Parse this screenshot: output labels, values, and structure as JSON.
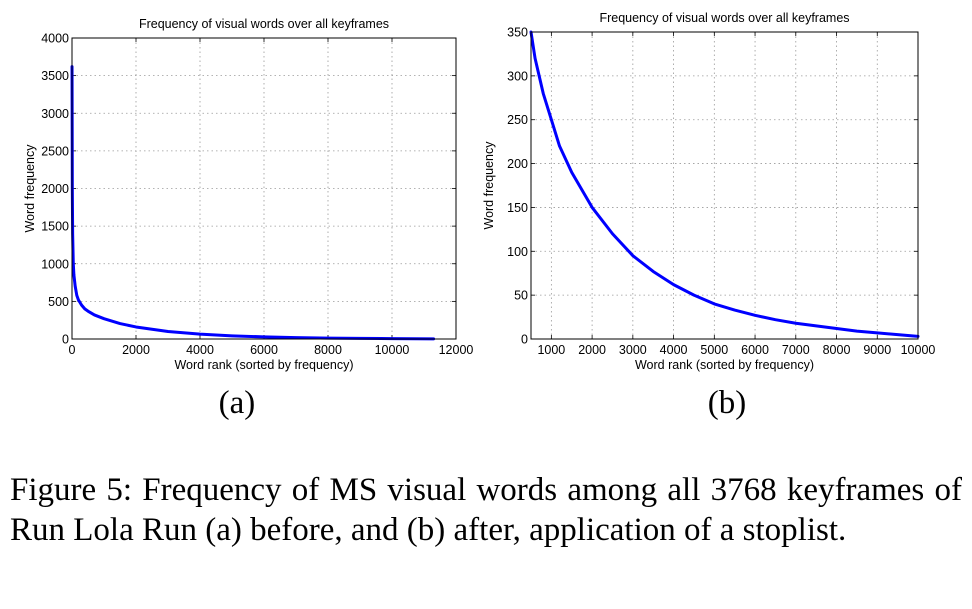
{
  "chart_data": [
    {
      "type": "line",
      "title": "Frequency of visual words over all keyframes",
      "xlabel": "Word rank (sorted by frequency)",
      "ylabel": "Word frequency",
      "xlim": [
        0,
        12000
      ],
      "ylim": [
        0,
        4000
      ],
      "xticks": [
        "0",
        "2000",
        "4000",
        "6000",
        "8000",
        "10000",
        "12000"
      ],
      "yticks": [
        "0",
        "500",
        "1000",
        "1500",
        "2000",
        "2500",
        "3000",
        "3500",
        "4000"
      ],
      "grid": true,
      "series": [
        {
          "color": "#0000ff",
          "x": [
            1,
            10,
            20,
            40,
            60,
            100,
            150,
            200,
            300,
            400,
            500,
            700,
            1000,
            1500,
            2000,
            3000,
            4000,
            5000,
            6000,
            7000,
            8000,
            9000,
            10000,
            11300
          ],
          "y": [
            3620,
            2000,
            1400,
            1000,
            850,
            700,
            580,
            520,
            450,
            400,
            370,
            320,
            270,
            205,
            160,
            100,
            65,
            42,
            28,
            18,
            12,
            8,
            5,
            2
          ]
        }
      ]
    },
    {
      "type": "line",
      "title": "Frequency of visual words over all keyframes",
      "xlabel": "Word rank (sorted by frequency)",
      "ylabel": "Word frequency",
      "xlim": [
        500,
        10000
      ],
      "ylim": [
        0,
        350
      ],
      "xticks": [
        "1000",
        "2000",
        "3000",
        "4000",
        "5000",
        "6000",
        "7000",
        "8000",
        "9000",
        "10000"
      ],
      "yticks": [
        "0",
        "50",
        "100",
        "150",
        "200",
        "250",
        "300",
        "350"
      ],
      "grid": true,
      "series": [
        {
          "color": "#0000ff",
          "x": [
            500,
            600,
            700,
            800,
            1000,
            1200,
            1500,
            2000,
            2500,
            3000,
            3500,
            4000,
            4500,
            5000,
            5500,
            6000,
            6500,
            7000,
            7500,
            8000,
            8500,
            9000,
            9500,
            10000
          ],
          "y": [
            350,
            320,
            300,
            280,
            250,
            220,
            190,
            150,
            120,
            95,
            77,
            62,
            50,
            40,
            33,
            27,
            22,
            18,
            15,
            12,
            9,
            7,
            5,
            3
          ]
        }
      ]
    }
  ],
  "sublabels": [
    "(a)",
    "(b)"
  ],
  "caption": "Figure 5:  Frequency of MS visual words among all 3768 keyframes of Run Lola Run (a) before, and (b) after, application of a stoplist."
}
